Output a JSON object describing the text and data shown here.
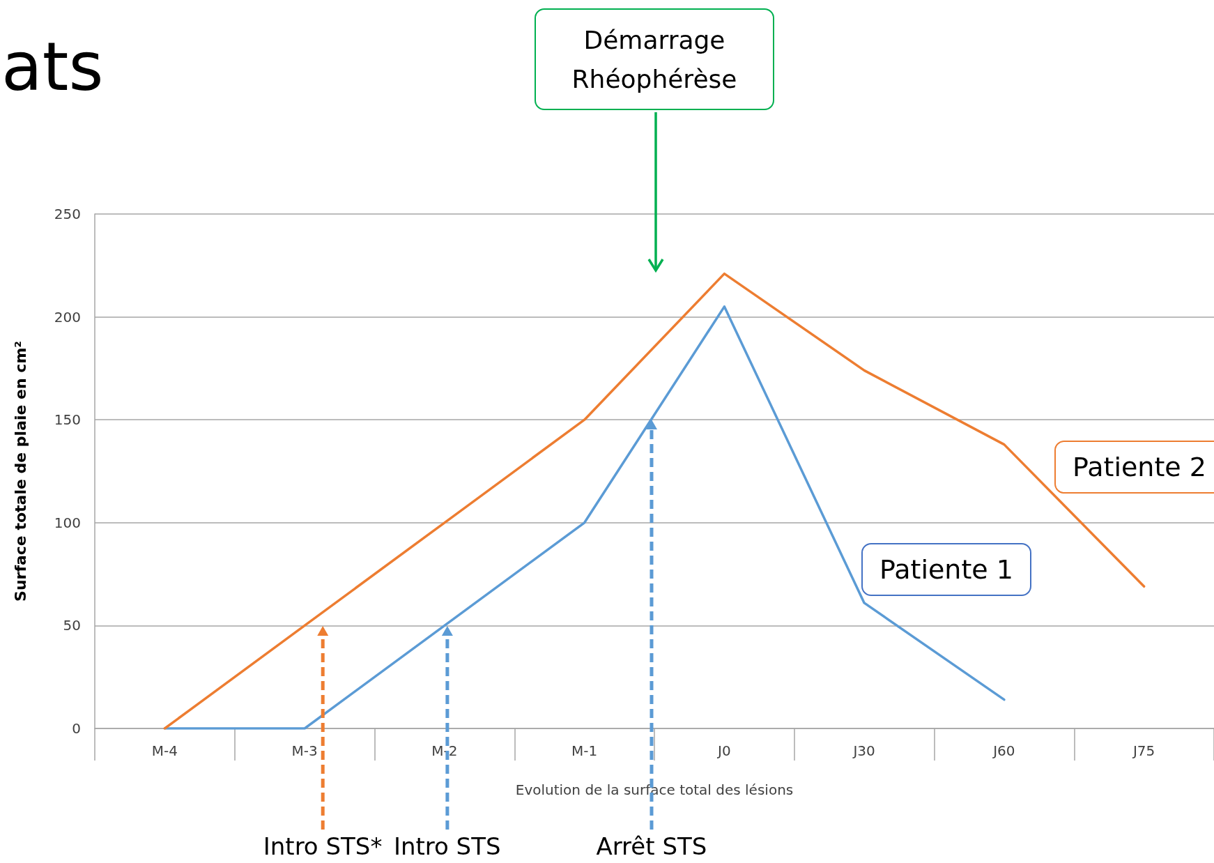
{
  "chart_data": {
    "type": "line",
    "title": "ats",
    "xlabel": "Evolution de la surface total des lésions",
    "ylabel": "Surface totale de plaie en cm²",
    "categories": [
      "M-4",
      "M-3",
      "M-2",
      "M-1",
      "J0",
      "J30",
      "J60",
      "J75"
    ],
    "series": [
      {
        "name": "Patiente 1",
        "color": "#5b9bd5",
        "values": [
          0,
          0,
          50,
          100,
          205,
          61,
          14,
          null
        ]
      },
      {
        "name": "Patiente 2",
        "color": "#ed7d31",
        "values": [
          0,
          50,
          100,
          150,
          221,
          174,
          138,
          69
        ]
      }
    ],
    "ylim": [
      0,
      250
    ],
    "yticks": [
      0,
      50,
      100,
      150,
      200,
      250
    ],
    "grid": "y",
    "marker": "none",
    "line_style": "solid",
    "annotations": [
      "Intro STS*",
      "Intro STS",
      "Arrêt STS",
      "Démarrage Rhéophérèse"
    ]
  }
}
